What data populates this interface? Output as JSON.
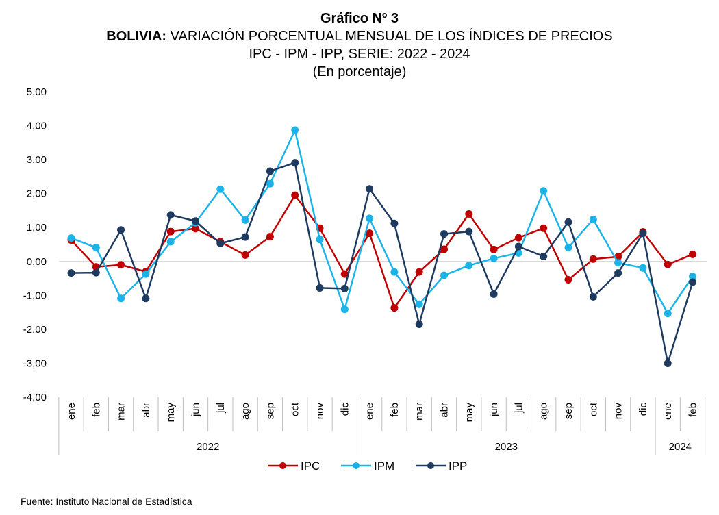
{
  "title": "Gráfico Nº 3",
  "subtitle_bold": "BOLIVIA:",
  "subtitle_rest": " VARIACIÓN PORCENTUAL MENSUAL DE LOS ÍNDICES DE PRECIOS",
  "subtitle_line2": "IPC - IPM - IPP, SERIE: 2022 - 2024",
  "subtitle_line3": "(En porcentaje)",
  "source": "Fuente: Instituto Nacional de Estadística",
  "colors": {
    "IPC": "#c00000",
    "IPM": "#1cb4e8",
    "IPP": "#1f3a5f"
  },
  "chart_data": {
    "type": "line",
    "y_ticks": [
      "5,00",
      "4,00",
      "3,00",
      "2,00",
      "1,00",
      "0,00",
      "-1,00",
      "-2,00",
      "-3,00",
      "-4,00"
    ],
    "ylim": [
      -4,
      5
    ],
    "months": [
      "ene",
      "feb",
      "mar",
      "abr",
      "may",
      "jun",
      "jul",
      "ago",
      "sep",
      "oct",
      "nov",
      "dic",
      "ene",
      "feb",
      "mar",
      "abr",
      "may",
      "jun",
      "jul",
      "ago",
      "sep",
      "oct",
      "nov",
      "dic",
      "ene",
      "feb"
    ],
    "years": [
      {
        "label": "2022",
        "start": 0,
        "count": 12
      },
      {
        "label": "2023",
        "start": 12,
        "count": 12
      },
      {
        "label": "2024",
        "start": 24,
        "count": 2
      }
    ],
    "legend_position": "bottom",
    "grid": false,
    "series": [
      {
        "name": "IPC",
        "values": [
          0.63,
          -0.16,
          -0.1,
          -0.3,
          0.88,
          0.97,
          0.58,
          0.19,
          0.73,
          1.95,
          0.98,
          -0.37,
          0.83,
          -1.37,
          -0.31,
          0.36,
          1.4,
          0.35,
          0.7,
          0.98,
          -0.54,
          0.07,
          0.14,
          0.87,
          -0.09,
          0.21
        ]
      },
      {
        "name": "IPM",
        "values": [
          0.69,
          0.41,
          -1.09,
          -0.37,
          0.58,
          1.14,
          2.13,
          1.22,
          2.29,
          3.87,
          0.65,
          -1.41,
          1.27,
          -0.31,
          -1.26,
          -0.41,
          -0.12,
          0.09,
          0.25,
          2.08,
          0.41,
          1.24,
          -0.04,
          -0.19,
          -1.53,
          -0.44
        ]
      },
      {
        "name": "IPP",
        "values": [
          -0.34,
          -0.33,
          0.93,
          -1.09,
          1.37,
          1.19,
          0.53,
          0.72,
          2.66,
          2.91,
          -0.78,
          -0.8,
          2.14,
          1.12,
          -1.85,
          0.81,
          0.88,
          -0.96,
          0.44,
          0.15,
          1.16,
          -1.04,
          -0.34,
          0.83,
          -3.0,
          -0.61
        ]
      }
    ]
  }
}
